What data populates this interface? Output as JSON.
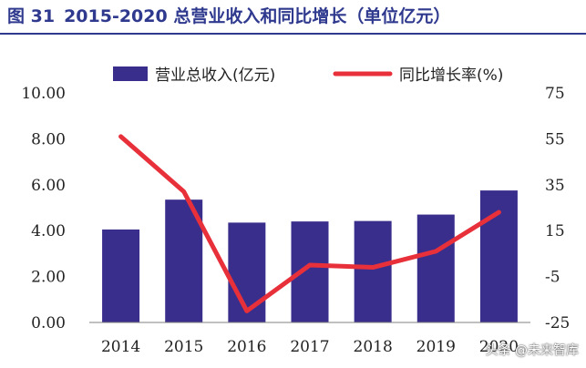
{
  "figure": {
    "label": "图 31",
    "title": "2015-2020 总营业收入和同比增长（单位亿元）"
  },
  "watermark": "头条 @未来智库",
  "chart_data": {
    "type": "bar",
    "categories": [
      "2014",
      "2015",
      "2016",
      "2017",
      "2018",
      "2019",
      "2020"
    ],
    "series": [
      {
        "name": "营业总收入(亿元)",
        "type": "bar",
        "axis": "left",
        "color": "#3a2e8c",
        "values": [
          4.05,
          5.35,
          4.35,
          4.4,
          4.42,
          4.7,
          5.75
        ]
      },
      {
        "name": "同比增长率(%)",
        "type": "line",
        "axis": "right",
        "color": "#e8303a",
        "values": [
          56,
          32,
          -20,
          0,
          -1,
          6,
          23
        ]
      }
    ],
    "y_left": {
      "ylim": [
        0,
        10
      ],
      "ticks": [
        "10.00",
        "8.00",
        "6.00",
        "4.00",
        "2.00",
        "0.00"
      ],
      "tick_values": [
        10,
        8,
        6,
        4,
        2,
        0
      ]
    },
    "y_right": {
      "ylim": [
        -25,
        75
      ],
      "ticks": [
        "75",
        "55",
        "35",
        "15",
        "-5",
        "-25"
      ],
      "tick_values": [
        75,
        55,
        35,
        15,
        -5,
        -25
      ]
    },
    "grid": false,
    "legend_position": "top"
  }
}
